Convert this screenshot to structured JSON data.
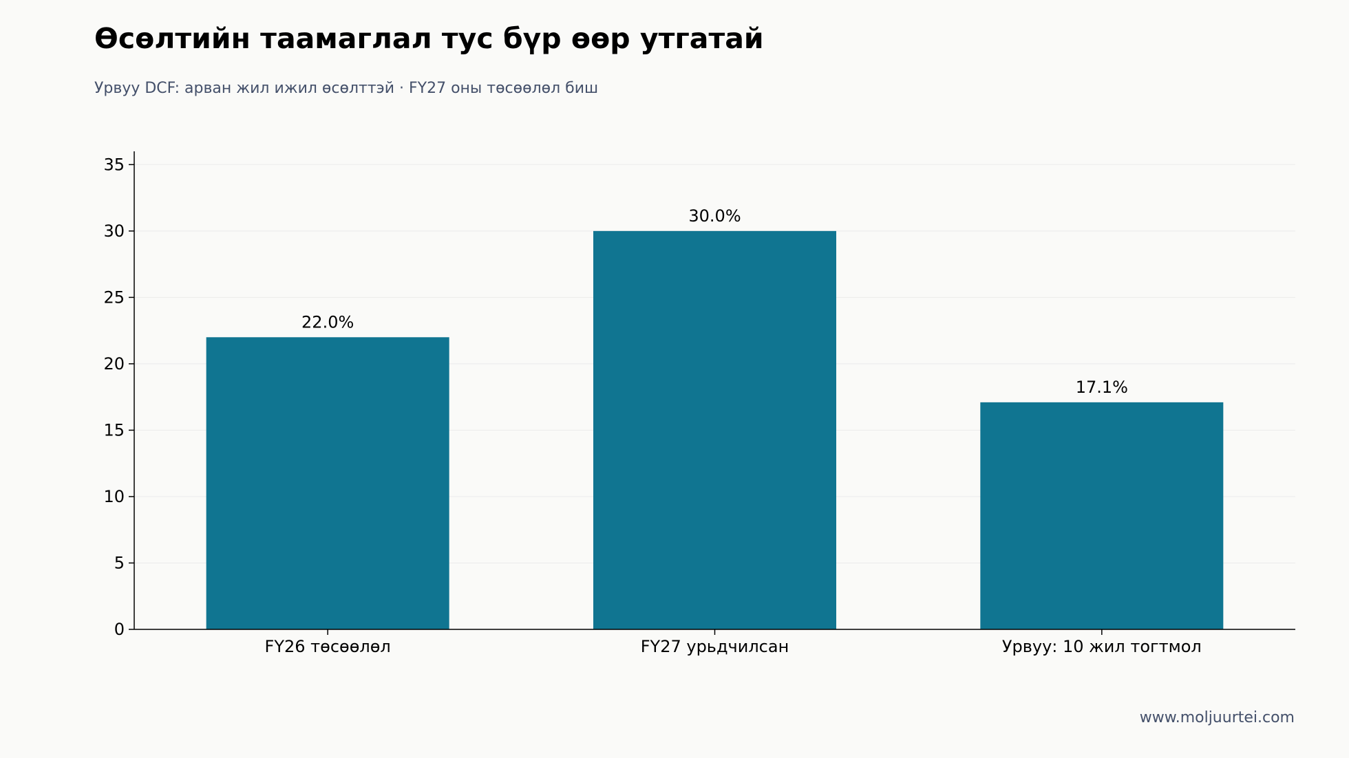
{
  "header": {
    "title": "Өсөлтийн таамаглал тус бүр өөр утгатай",
    "subtitle": "Урвуу DCF: арван жил ижил өсөлттэй · FY27 оны төсөөлөл биш"
  },
  "footer": {
    "source": "www.moljuurtei.com"
  },
  "colors": {
    "bar": "#107591",
    "axis": "#000000",
    "grid": "#ebebeb",
    "background": "#fafaf8"
  },
  "chart_data": {
    "type": "bar",
    "title": "Өсөлтийн таамаглал тус бүр өөр утгатай",
    "subtitle": "Урвуу DCF: арван жил ижил өсөлттэй · FY27 оны төсөөлөл биш",
    "categories": [
      "FY26 төсөөлөл",
      "FY27 урьдчилсан",
      "Урвуу: 10 жил тогтмол"
    ],
    "values": [
      22.0,
      30.0,
      17.1
    ],
    "data_labels": [
      "22.0%",
      "30.0%",
      "17.1%"
    ],
    "xlabel": "",
    "ylabel": "",
    "ylim": [
      0,
      36
    ],
    "yticks": [
      0,
      5,
      10,
      15,
      20,
      25,
      30,
      35
    ],
    "grid": true,
    "legend": "none"
  }
}
